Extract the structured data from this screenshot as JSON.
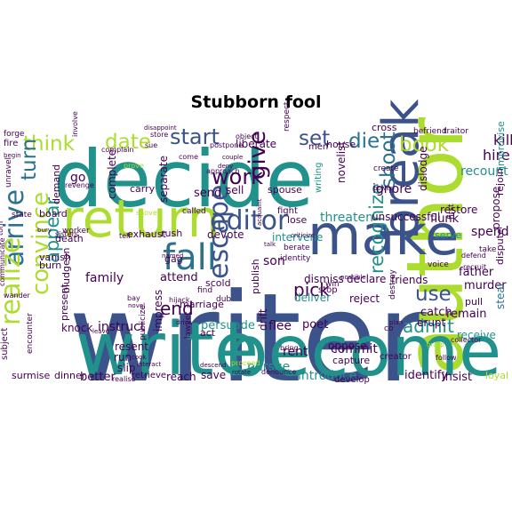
{
  "title": "Stubborn fool",
  "colors": {
    "background": "#ffffff",
    "palette": [
      "#440154",
      "#472d7b",
      "#3b528b",
      "#2c728e",
      "#21918c",
      "#28ae80",
      "#5ec962",
      "#addc30",
      "#fde725"
    ]
  },
  "words": [
    "writer",
    "decide",
    "author",
    "write",
    "become",
    "make",
    "return",
    "editor",
    "break",
    "arrive",
    "fall",
    "realize",
    "escape",
    "convince",
    "work",
    "give",
    "start",
    "date",
    "think",
    "set",
    "book",
    "die",
    "kill",
    "shoot",
    "use",
    "recognize",
    "admit",
    "appear",
    "turn",
    "end",
    "pick",
    "hire",
    "recount",
    "ignore",
    "spend",
    "novelist",
    "threaten",
    "murder",
    "flee",
    "persuade",
    "introduce",
    "commit",
    "rent",
    "poet",
    "publish",
    "drift",
    "son",
    "dismiss",
    "catch",
    "father",
    "receive",
    "remain",
    "propose",
    "steal",
    "dispute",
    "identify",
    "insist",
    "pursue",
    "reach",
    "save",
    "better",
    "impress",
    "instruct",
    "knock",
    "run",
    "resent",
    "slip",
    "attend",
    "family",
    "separate",
    "rush",
    "send",
    "sell",
    "complete",
    "carry",
    "go",
    "board",
    "death",
    "demand",
    "vanish",
    "burn",
    "exhaust",
    "devote",
    "gag",
    "scold",
    "marriage",
    "act",
    "lawyer",
    "retrieve",
    "dinner",
    "surmise",
    "subject",
    "present",
    "encounter",
    "bludgeon",
    "communicate",
    "state",
    "unravel",
    "fire",
    "forge",
    "flunk",
    "restore",
    "rejoin",
    "improvise",
    "dislodge",
    "unsuccessful",
    "declare",
    "friends",
    "pull",
    "erupt",
    "deliver",
    "reject",
    "stop",
    "develop",
    "capture",
    "oppose",
    "creator",
    "fight",
    "lose",
    "liberate",
    "spouse",
    "writing",
    "deny",
    "create",
    "cross",
    "befriend",
    "traitor",
    "respect",
    "house",
    "men",
    "intervene",
    "berate",
    "win",
    "identity",
    "serve",
    "voice",
    "take",
    "defend",
    "recruit",
    "first",
    "loyal",
    "follow",
    "collector",
    "bring",
    "grasp",
    "destroy",
    "co",
    "couple",
    "approach",
    "prove",
    "revenge",
    "involve",
    "complain",
    "sue",
    "store",
    "disappoint",
    "postpone",
    "object",
    "called",
    "find",
    "publicize",
    "hijack",
    "dub",
    "drive",
    "interact",
    "cook",
    "novel",
    "leave",
    "realise",
    "bury",
    "tell",
    "bay",
    "wander",
    "torn",
    "sisters",
    "criticize",
    "talk",
    "acquaint",
    "denounce",
    "proceed",
    "rotate",
    "descend",
    "power",
    "possible",
    "named",
    "worker",
    "come",
    "begin",
    "shove",
    "plan"
  ]
}
